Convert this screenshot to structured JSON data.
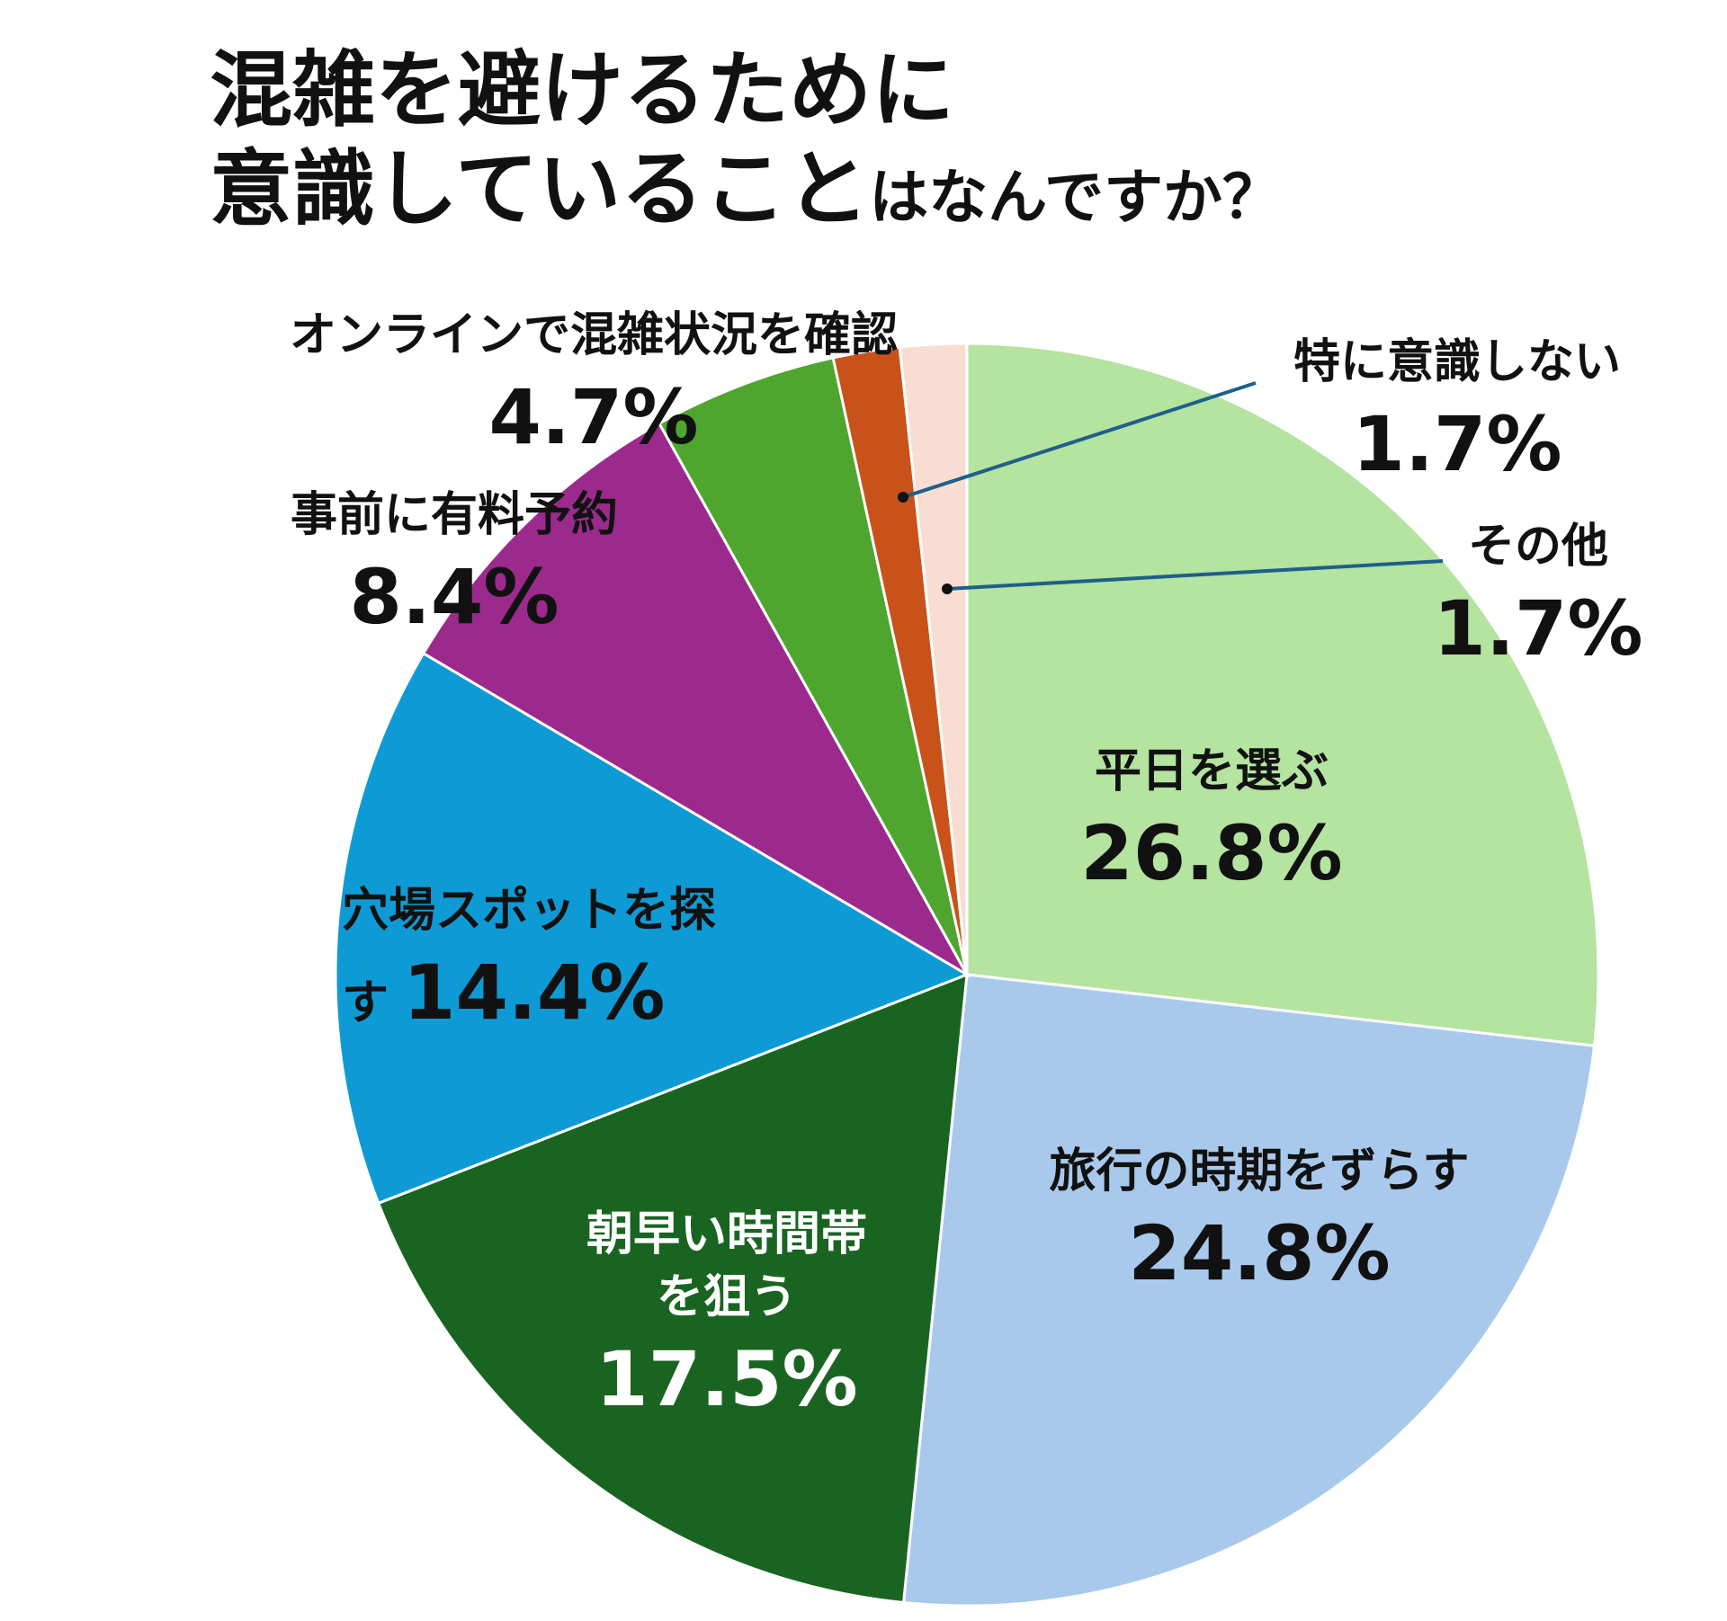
{
  "chart_data": {
    "type": "pie",
    "title": [
      "混雑を避けるために",
      "意識していること",
      "はなんですか？"
    ],
    "categories": [
      "平日を選ぶ",
      "旅行の時期をずらす",
      "朝早い時間帯を狙う",
      "穴場スポットを探す",
      "事前に有料予約",
      "オンラインで混雑状況を確認",
      "特に意識しない",
      "その他"
    ],
    "values": [
      26.8,
      24.8,
      17.5,
      14.4,
      8.4,
      4.7,
      1.7,
      1.7
    ],
    "value_labels": [
      "26.8%",
      "24.8%",
      "17.5%",
      "14.4%",
      "8.4%",
      "4.7%",
      "1.7%",
      "1.7%"
    ],
    "colors": [
      "#b5e3a0",
      "#a9c9ec",
      "#1a6421",
      "#0e9bd5",
      "#9c2a8d",
      "#4ea62e",
      "#c9521b",
      "#f9ddd3"
    ]
  }
}
